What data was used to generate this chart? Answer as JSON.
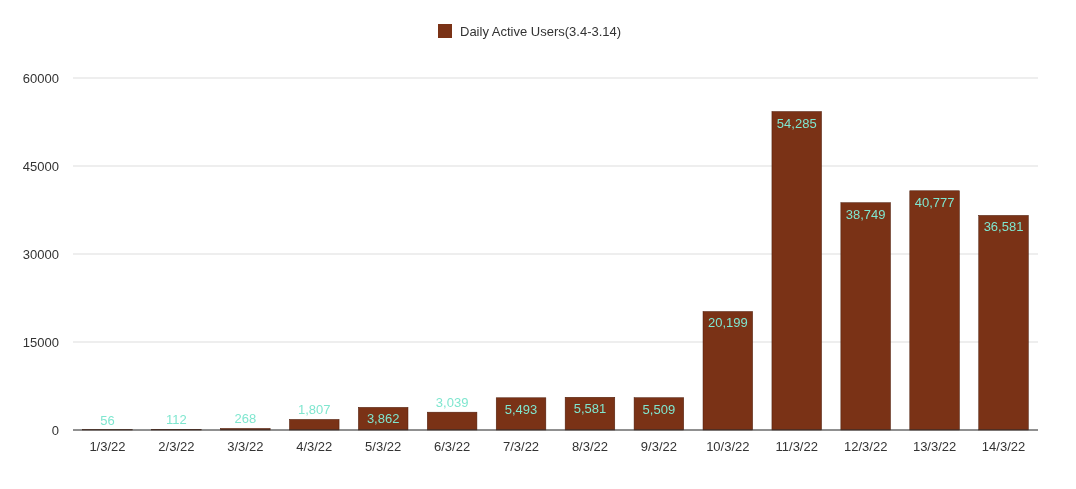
{
  "chart_data": {
    "type": "bar",
    "categories": [
      "1/3/22",
      "2/3/22",
      "3/3/22",
      "4/3/22",
      "5/3/22",
      "6/3/22",
      "7/3/22",
      "8/3/22",
      "9/3/22",
      "10/3/22",
      "11/3/22",
      "12/3/22",
      "13/3/22",
      "14/3/22"
    ],
    "series": [
      {
        "name": "Daily Active Users(3.4-3.14)",
        "color": "#7a3216",
        "values": [
          56,
          112,
          268,
          1807,
          3862,
          3039,
          5493,
          5581,
          5509,
          20199,
          54285,
          38749,
          40777,
          36581
        ],
        "value_labels": [
          "56",
          "112",
          "268",
          "1,807",
          "3,862",
          "3,039",
          "5,493",
          "5,581",
          "5,509",
          "20,199",
          "54,285",
          "38,749",
          "40,777",
          "36,581"
        ]
      }
    ],
    "ylim": [
      0,
      60000
    ],
    "yticks": [
      0,
      15000,
      30000,
      45000,
      60000
    ],
    "grid": "y",
    "legend": "top"
  }
}
